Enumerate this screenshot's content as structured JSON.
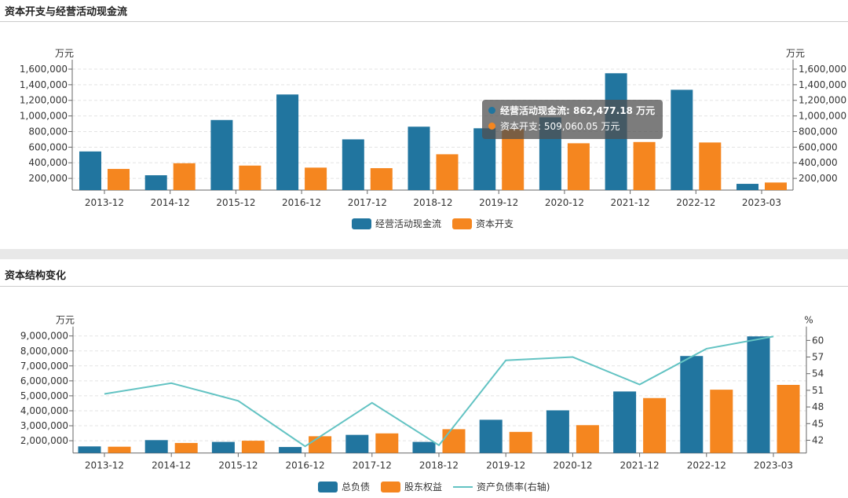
{
  "colors": {
    "blue": "#21759f",
    "orange": "#f5861f",
    "teal": "#63c3c3"
  },
  "chart_data": [
    {
      "type": "bar",
      "title": "资本开支与经营活动现金流",
      "ylabel_left": "万元",
      "ylabel_right": "万元",
      "categories": [
        "2013-12",
        "2014-12",
        "2015-12",
        "2016-12",
        "2017-12",
        "2018-12",
        "2019-12",
        "2020-12",
        "2021-12",
        "2022-12",
        "2023-03"
      ],
      "yticks": [
        "200,000",
        "400,000",
        "600,000",
        "800,000",
        "1,000,000",
        "1,200,000",
        "1,400,000",
        "1,600,000"
      ],
      "ylim": [
        50000,
        1600000
      ],
      "grid": true,
      "legend": "bottom",
      "series": [
        {
          "name": "经营活动现金流",
          "values": [
            545000,
            240000,
            948000,
            1275000,
            700000,
            862477.18,
            842000,
            982000,
            1547000,
            1335000,
            130000
          ]
        },
        {
          "name": "资本开支",
          "values": [
            321000,
            394000,
            364000,
            338000,
            331000,
            509060.05,
            830000,
            650000,
            666000,
            660000,
            147000
          ]
        }
      ],
      "tooltip": {
        "lines": [
          {
            "label": "经营活动现金流: 862,477.18  万元",
            "bold": true
          },
          {
            "label": "资本开支: 509,060.05  万元"
          }
        ]
      }
    },
    {
      "type": "bar",
      "title": "资本结构变化",
      "ylabel_left": "万元",
      "ylabel_right": "%",
      "categories": [
        "2013-12",
        "2014-12",
        "2015-12",
        "2016-12",
        "2017-12",
        "2018-12",
        "2019-12",
        "2020-12",
        "2021-12",
        "2022-12",
        "2023-03"
      ],
      "yticks": [
        "2,000,000",
        "3,000,000",
        "4,000,000",
        "5,000,000",
        "6,000,000",
        "7,000,000",
        "8,000,000",
        "9,000,000"
      ],
      "yticks_right": [
        "42",
        "45",
        "48",
        "51",
        "54",
        "57",
        "60"
      ],
      "ylim": [
        1180000,
        9000000
      ],
      "ylim_right": [
        39.7,
        60.8
      ],
      "grid": true,
      "legend": "bottom",
      "series": [
        {
          "name": "总负债",
          "values": [
            1620000,
            2040000,
            1920000,
            1580000,
            2390000,
            1920000,
            3400000,
            4030000,
            5290000,
            7660000,
            8970000
          ]
        },
        {
          "name": "股东权益",
          "values": [
            1600000,
            1850000,
            2000000,
            2300000,
            2490000,
            2770000,
            2590000,
            3040000,
            4850000,
            5410000,
            5730000
          ]
        },
        {
          "name": "资产负债率(右轴)",
          "type": "line",
          "axis": "right",
          "values": [
            50.35,
            52.3,
            49.1,
            40.9,
            48.75,
            41.1,
            56.4,
            57.0,
            52.05,
            58.5,
            60.7
          ]
        }
      ]
    }
  ]
}
